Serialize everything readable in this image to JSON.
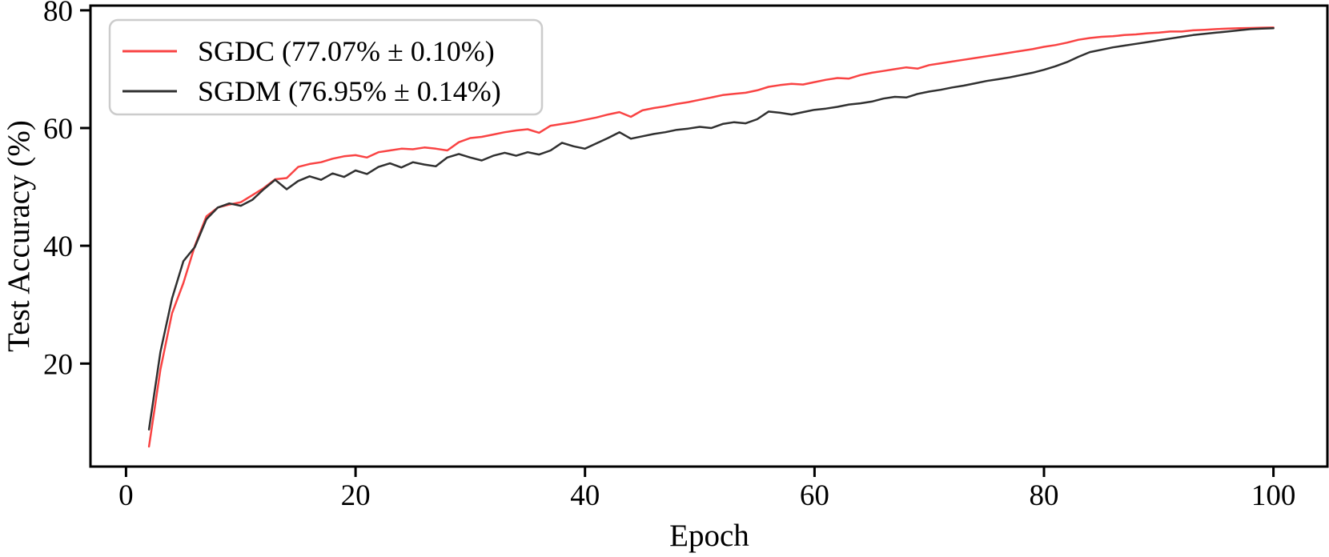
{
  "figure": {
    "background": "#ffffff",
    "axis_color": "#000000",
    "legend_border_color": "#cccccc",
    "legend_background": "#ffffff"
  },
  "chart_data": {
    "type": "line",
    "title": "",
    "xlabel": "Epoch",
    "ylabel": "Test Accuracy (%)",
    "xlim": [
      -3.1,
      104.7
    ],
    "ylim": [
      2.5,
      80.8
    ],
    "x_ticks": [
      0,
      20,
      40,
      60,
      80,
      100
    ],
    "y_ticks": [
      20,
      40,
      60,
      80
    ],
    "grid": false,
    "legend_position": "upper left",
    "x": [
      2,
      3,
      4,
      5,
      6,
      7,
      8,
      9,
      10,
      11,
      12,
      13,
      14,
      15,
      16,
      17,
      18,
      19,
      20,
      21,
      22,
      23,
      24,
      25,
      26,
      27,
      28,
      29,
      30,
      31,
      32,
      33,
      34,
      35,
      36,
      37,
      38,
      39,
      40,
      41,
      42,
      43,
      44,
      45,
      46,
      47,
      48,
      49,
      50,
      51,
      52,
      53,
      54,
      55,
      56,
      57,
      58,
      59,
      60,
      61,
      62,
      63,
      64,
      65,
      66,
      67,
      68,
      69,
      70,
      71,
      72,
      73,
      74,
      75,
      76,
      77,
      78,
      79,
      80,
      81,
      82,
      83,
      84,
      85,
      86,
      87,
      88,
      89,
      90,
      91,
      92,
      93,
      94,
      95,
      96,
      97,
      98,
      99,
      100
    ],
    "series": [
      {
        "name": "SGDC (77.07% ± 0.10%)",
        "color": "#f94343",
        "final_accuracy_pct": 77.07,
        "std_pct": 0.1,
        "values": [
          5.9,
          19.0,
          28.5,
          33.7,
          40.0,
          45.0,
          46.5,
          47.0,
          47.4,
          48.6,
          49.8,
          51.3,
          51.5,
          53.4,
          53.9,
          54.2,
          54.8,
          55.2,
          55.4,
          55.0,
          55.9,
          56.2,
          56.5,
          56.4,
          56.7,
          56.5,
          56.2,
          57.6,
          58.3,
          58.5,
          58.9,
          59.3,
          59.6,
          59.8,
          59.2,
          60.4,
          60.7,
          61.0,
          61.4,
          61.8,
          62.3,
          62.7,
          61.9,
          63.0,
          63.4,
          63.7,
          64.1,
          64.4,
          64.8,
          65.2,
          65.6,
          65.8,
          66.0,
          66.4,
          67.0,
          67.3,
          67.5,
          67.4,
          67.8,
          68.2,
          68.5,
          68.4,
          69.0,
          69.4,
          69.7,
          70.0,
          70.3,
          70.1,
          70.7,
          71.0,
          71.3,
          71.6,
          71.9,
          72.2,
          72.5,
          72.8,
          73.1,
          73.4,
          73.8,
          74.1,
          74.5,
          75.0,
          75.3,
          75.5,
          75.6,
          75.8,
          75.9,
          76.1,
          76.2,
          76.4,
          76.4,
          76.6,
          76.7,
          76.8,
          76.9,
          76.95,
          77.0,
          77.05,
          77.07
        ]
      },
      {
        "name": "SGDM (76.95% ± 0.14%)",
        "color": "#303030",
        "final_accuracy_pct": 76.95,
        "std_pct": 0.14,
        "values": [
          8.8,
          22.0,
          31.0,
          37.4,
          39.8,
          44.5,
          46.5,
          47.2,
          46.8,
          47.8,
          49.6,
          51.2,
          49.6,
          51.0,
          51.8,
          51.2,
          52.3,
          51.7,
          52.8,
          52.2,
          53.4,
          54.0,
          53.3,
          54.2,
          53.8,
          53.5,
          55.0,
          55.6,
          55.0,
          54.5,
          55.3,
          55.8,
          55.3,
          55.9,
          55.5,
          56.2,
          57.5,
          56.9,
          56.5,
          57.4,
          58.3,
          59.3,
          58.2,
          58.6,
          59.0,
          59.3,
          59.7,
          59.9,
          60.2,
          60.0,
          60.7,
          61.0,
          60.8,
          61.5,
          62.8,
          62.6,
          62.3,
          62.7,
          63.1,
          63.3,
          63.6,
          64.0,
          64.2,
          64.5,
          65.0,
          65.3,
          65.2,
          65.8,
          66.2,
          66.5,
          66.9,
          67.2,
          67.6,
          68.0,
          68.3,
          68.6,
          69.0,
          69.4,
          69.9,
          70.5,
          71.2,
          72.1,
          72.9,
          73.3,
          73.7,
          74.0,
          74.3,
          74.6,
          74.9,
          75.2,
          75.5,
          75.8,
          76.0,
          76.2,
          76.4,
          76.6,
          76.8,
          76.9,
          76.95
        ]
      }
    ]
  }
}
